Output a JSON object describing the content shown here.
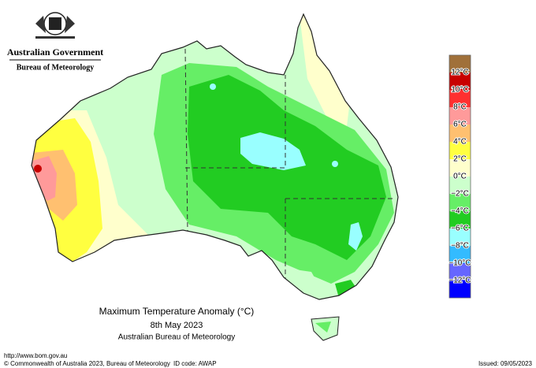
{
  "header": {
    "government": "Australian Government",
    "agency": "Bureau of Meteorology"
  },
  "map": {
    "title": "Maximum Temperature Anomaly (°C)",
    "date": "8th May 2023",
    "source": "Australian Bureau of Meteorology"
  },
  "legend": {
    "labels": [
      "12°C",
      "10°C",
      "8°C",
      "6°C",
      "4°C",
      "2°C",
      "0°C",
      "−2°C",
      "−4°C",
      "−6°C",
      "−8°C",
      "−10°C",
      "−12°C"
    ],
    "colors": [
      "#a0703a",
      "#c80000",
      "#ff3030",
      "#ff9a9a",
      "#ffc070",
      "#ffff40",
      "#ffffcc",
      "#ccffcc",
      "#66ee66",
      "#22cc22",
      "#99ffff",
      "#33bbff",
      "#6666ff",
      "#0000ff"
    ]
  },
  "footer": {
    "url": "http://www.bom.gov.au",
    "copyright": "© Commonwealth of Australia 2023, Bureau of Meteorology",
    "id_code": "ID code: AWAP",
    "issued": "Issued: 09/05/2023"
  }
}
